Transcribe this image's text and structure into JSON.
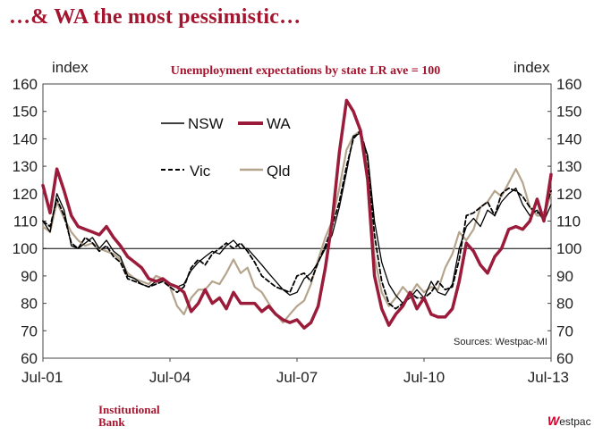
{
  "slide_title": "…& WA the most pessimistic…",
  "footer": {
    "left_logo_line1": "Institutional",
    "left_logo_line2": "Bank",
    "right_logo_mark": "W",
    "right_logo_text": "estpac"
  },
  "colors": {
    "accent": "#a3142e",
    "nsw": "#000000",
    "wa": "#9b1b3a",
    "vic": "#000000",
    "qld": "#b5a48c"
  },
  "chart_data": {
    "type": "line",
    "title": "Unemployment expectations by state LR ave = 100",
    "ylabel_left": "index",
    "ylabel_right": "index",
    "ylim": [
      60,
      160
    ],
    "yticks": [
      60,
      70,
      80,
      90,
      100,
      110,
      120,
      130,
      140,
      150,
      160
    ],
    "x_range": [
      2001.5,
      2013.5
    ],
    "x_tick_labels": [
      "Jul-01",
      "Jul-04",
      "Jul-07",
      "Jul-10",
      "Jul-13"
    ],
    "x_tick_values": [
      2001.5,
      2004.5,
      2007.5,
      2010.5,
      2013.5
    ],
    "reference_line": 100,
    "source": "Sources: Westpac-MI",
    "legend": [
      "NSW",
      "WA",
      "Vic",
      "Qld"
    ],
    "series": [
      {
        "name": "NSW",
        "style": "solid-thin",
        "x": [
          2001.5,
          2001.67,
          2001.83,
          2002.0,
          2002.17,
          2002.33,
          2002.5,
          2002.67,
          2002.83,
          2003.0,
          2003.17,
          2003.33,
          2003.5,
          2003.67,
          2003.83,
          2004.0,
          2004.17,
          2004.33,
          2004.5,
          2004.67,
          2004.83,
          2005.0,
          2005.17,
          2005.33,
          2005.5,
          2005.67,
          2005.83,
          2006.0,
          2006.17,
          2006.33,
          2006.5,
          2006.67,
          2006.83,
          2007.0,
          2007.17,
          2007.33,
          2007.5,
          2007.67,
          2007.83,
          2008.0,
          2008.17,
          2008.33,
          2008.5,
          2008.67,
          2008.83,
          2009.0,
          2009.17,
          2009.33,
          2009.5,
          2009.67,
          2009.83,
          2010.0,
          2010.17,
          2010.33,
          2010.5,
          2010.67,
          2010.83,
          2011.0,
          2011.17,
          2011.33,
          2011.5,
          2011.67,
          2011.83,
          2012.0,
          2012.17,
          2012.33,
          2012.5,
          2012.67,
          2012.83,
          2013.0,
          2013.17,
          2013.33,
          2013.5
        ],
        "y": [
          110,
          106,
          120,
          114,
          101,
          100,
          102,
          104,
          100,
          103,
          99,
          97,
          90,
          89,
          87,
          86,
          88,
          89,
          87,
          86,
          87,
          92,
          95,
          97,
          99,
          98,
          101,
          103,
          100,
          100,
          97,
          94,
          91,
          88,
          85,
          83,
          84,
          89,
          91,
          95,
          100,
          105,
          115,
          128,
          141,
          142,
          134,
          110,
          95,
          87,
          83,
          80,
          82,
          85,
          82,
          88,
          84,
          83,
          87,
          100,
          108,
          111,
          108,
          114,
          112,
          117,
          120,
          122,
          116,
          112,
          114,
          110,
          116
        ]
      },
      {
        "name": "WA",
        "style": "solid-thick",
        "x": [
          2001.5,
          2001.67,
          2001.83,
          2002.0,
          2002.17,
          2002.33,
          2002.5,
          2002.67,
          2002.83,
          2003.0,
          2003.17,
          2003.33,
          2003.5,
          2003.67,
          2003.83,
          2004.0,
          2004.17,
          2004.33,
          2004.5,
          2004.67,
          2004.83,
          2005.0,
          2005.17,
          2005.33,
          2005.5,
          2005.67,
          2005.83,
          2006.0,
          2006.17,
          2006.33,
          2006.5,
          2006.67,
          2006.83,
          2007.0,
          2007.17,
          2007.33,
          2007.5,
          2007.67,
          2007.83,
          2008.0,
          2008.17,
          2008.33,
          2008.5,
          2008.67,
          2008.83,
          2009.0,
          2009.17,
          2009.33,
          2009.5,
          2009.67,
          2009.83,
          2010.0,
          2010.17,
          2010.33,
          2010.5,
          2010.67,
          2010.83,
          2011.0,
          2011.17,
          2011.33,
          2011.5,
          2011.67,
          2011.83,
          2012.0,
          2012.17,
          2012.33,
          2012.5,
          2012.67,
          2012.83,
          2013.0,
          2013.17,
          2013.33,
          2013.5
        ],
        "y": [
          123,
          113,
          129,
          121,
          112,
          108,
          107,
          106,
          105,
          108,
          104,
          101,
          97,
          95,
          93,
          89,
          88,
          89,
          87,
          86,
          84,
          77,
          80,
          85,
          80,
          82,
          78,
          84,
          80,
          80,
          80,
          77,
          79,
          76,
          74,
          73,
          74,
          71,
          73,
          79,
          93,
          110,
          135,
          154,
          150,
          143,
          125,
          90,
          78,
          72,
          76,
          79,
          84,
          78,
          82,
          76,
          75,
          75,
          78,
          88,
          102,
          99,
          94,
          91,
          97,
          100,
          107,
          108,
          107,
          110,
          118,
          110,
          127
        ]
      },
      {
        "name": "Vic",
        "style": "dashed",
        "x": [
          2001.5,
          2001.67,
          2001.83,
          2002.0,
          2002.17,
          2002.33,
          2002.5,
          2002.67,
          2002.83,
          2003.0,
          2003.17,
          2003.33,
          2003.5,
          2003.67,
          2003.83,
          2004.0,
          2004.17,
          2004.33,
          2004.5,
          2004.67,
          2004.83,
          2005.0,
          2005.17,
          2005.33,
          2005.5,
          2005.67,
          2005.83,
          2006.0,
          2006.17,
          2006.33,
          2006.5,
          2006.67,
          2006.83,
          2007.0,
          2007.17,
          2007.33,
          2007.5,
          2007.67,
          2007.83,
          2008.0,
          2008.17,
          2008.33,
          2008.5,
          2008.67,
          2008.83,
          2009.0,
          2009.17,
          2009.33,
          2009.5,
          2009.67,
          2009.83,
          2010.0,
          2010.17,
          2010.33,
          2010.5,
          2010.67,
          2010.83,
          2011.0,
          2011.17,
          2011.33,
          2011.5,
          2011.67,
          2011.83,
          2012.0,
          2012.17,
          2012.33,
          2012.5,
          2012.67,
          2012.83,
          2013.0,
          2013.17,
          2013.33,
          2013.5
        ],
        "y": [
          110,
          108,
          118,
          112,
          102,
          100,
          104,
          102,
          99,
          101,
          97,
          95,
          89,
          88,
          87,
          86,
          87,
          88,
          86,
          84,
          86,
          93,
          96,
          94,
          98,
          100,
          102,
          100,
          102,
          99,
          95,
          90,
          88,
          86,
          85,
          84,
          90,
          91,
          88,
          95,
          101,
          108,
          117,
          130,
          140,
          143,
          133,
          105,
          88,
          80,
          78,
          80,
          84,
          82,
          82,
          84,
          88,
          85,
          86,
          96,
          112,
          113,
          115,
          117,
          112,
          120,
          122,
          121,
          119,
          115,
          113,
          113,
          121
        ]
      },
      {
        "name": "Qld",
        "style": "solid-tan",
        "x": [
          2001.5,
          2001.67,
          2001.83,
          2002.0,
          2002.17,
          2002.33,
          2002.5,
          2002.67,
          2002.83,
          2003.0,
          2003.17,
          2003.33,
          2003.5,
          2003.67,
          2003.83,
          2004.0,
          2004.17,
          2004.33,
          2004.5,
          2004.67,
          2004.83,
          2005.0,
          2005.17,
          2005.33,
          2005.5,
          2005.67,
          2005.83,
          2006.0,
          2006.17,
          2006.33,
          2006.5,
          2006.67,
          2006.83,
          2007.0,
          2007.17,
          2007.33,
          2007.5,
          2007.67,
          2007.83,
          2008.0,
          2008.17,
          2008.33,
          2008.5,
          2008.67,
          2008.83,
          2009.0,
          2009.17,
          2009.33,
          2009.5,
          2009.67,
          2009.83,
          2010.0,
          2010.17,
          2010.33,
          2010.5,
          2010.67,
          2010.83,
          2011.0,
          2011.17,
          2011.33,
          2011.5,
          2011.67,
          2011.83,
          2012.0,
          2012.17,
          2012.33,
          2012.5,
          2012.67,
          2012.83,
          2013.0,
          2013.17,
          2013.33,
          2013.5
        ],
        "y": [
          108,
          106,
          117,
          111,
          106,
          103,
          101,
          102,
          100,
          99,
          98,
          96,
          91,
          89,
          88,
          87,
          90,
          89,
          86,
          79,
          76,
          82,
          85,
          85,
          88,
          87,
          91,
          96,
          91,
          93,
          86,
          84,
          80,
          76,
          73,
          76,
          79,
          81,
          87,
          96,
          104,
          110,
          122,
          136,
          141,
          143,
          130,
          97,
          84,
          79,
          82,
          86,
          83,
          87,
          84,
          86,
          85,
          93,
          98,
          106,
          103,
          107,
          115,
          117,
          121,
          119,
          124,
          129,
          124,
          115,
          112,
          112,
          120
        ]
      }
    ]
  }
}
